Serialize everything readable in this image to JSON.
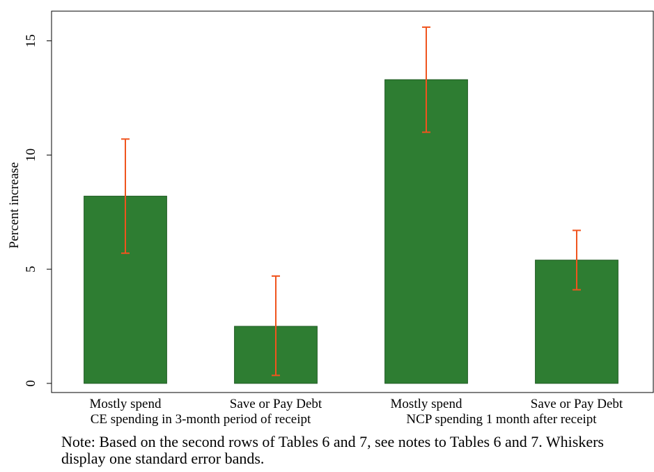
{
  "chart_data": {
    "type": "bar",
    "categories": [
      "Mostly spend",
      "Save or Pay Debt",
      "Mostly spend",
      "Save or Pay Debt"
    ],
    "groups": [
      {
        "label": "CE spending in 3-month period of receipt",
        "category_indices": [
          0,
          1
        ]
      },
      {
        "label": "NCP spending 1 month after receipt",
        "category_indices": [
          2,
          3
        ]
      }
    ],
    "values": [
      8.2,
      2.5,
      13.3,
      5.4
    ],
    "error_low": [
      5.7,
      0.35,
      11.0,
      4.1
    ],
    "error_high": [
      10.7,
      4.7,
      15.6,
      6.7
    ],
    "ylabel": "Percent increase",
    "xlabel": "",
    "ylim": [
      -0.4,
      16.3
    ],
    "yticks": [
      0,
      5,
      10,
      15
    ],
    "colors": {
      "bar": "#2e7d32",
      "bar_edge": "#1f5a22",
      "whisker": "#f0541e"
    },
    "grid": false,
    "note": "Note: Based on the second rows of Tables 6 and 7, see notes to Tables 6 and 7. Whiskers display one standard error bands."
  }
}
